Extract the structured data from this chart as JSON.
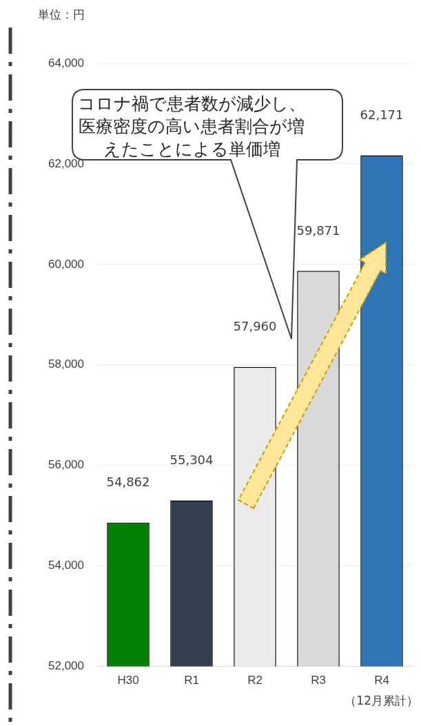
{
  "chart_data": {
    "type": "bar",
    "categories": [
      "H30",
      "R1",
      "R2",
      "R3",
      "R4"
    ],
    "values": [
      54862,
      55304,
      57960,
      59871,
      62171
    ],
    "colors": [
      "#008000",
      "#333f50",
      "#ebebeb",
      "#d9d9d9",
      "#2e75b6"
    ],
    "ylim": [
      52000,
      64000
    ],
    "yticks": [
      {
        "value": 52000,
        "label": "52,000"
      },
      {
        "value": 54000,
        "label": "54,000"
      },
      {
        "value": 56000,
        "label": "56,000"
      },
      {
        "value": 58000,
        "label": "58,000"
      },
      {
        "value": 60000,
        "label": "60,000"
      },
      {
        "value": 62000,
        "label": "62,000"
      },
      {
        "value": 64000,
        "label": "64,000"
      }
    ],
    "grid": "y",
    "legend": false,
    "value_labels": [
      "54,862",
      "55,304",
      "57,960",
      "59,871",
      "62,171"
    ],
    "annotations": [
      "単位：円",
      "コロナ禍で患者数が減少し、医療密度の高い患者割合が増えたことによる単価増",
      "（12月累計）"
    ]
  }
}
